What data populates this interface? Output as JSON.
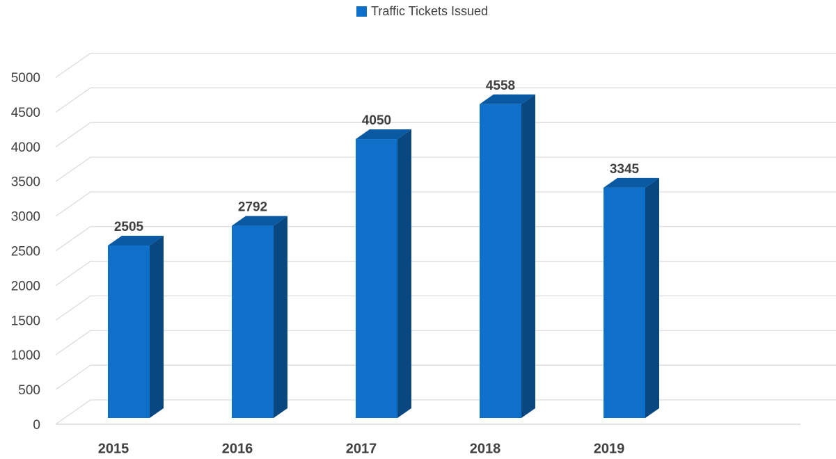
{
  "chart_data": {
    "type": "bar",
    "legend": "top",
    "categories": [
      "2015",
      "2016",
      "2017",
      "2018",
      "2019"
    ],
    "series": [
      {
        "name": "Traffic Tickets Issued",
        "color": "#0e70c8",
        "values": [
          2505,
          2792,
          4050,
          4558,
          3345
        ]
      }
    ],
    "ylim": [
      0,
      5000
    ],
    "yticks": [
      0,
      500,
      1000,
      1500,
      2000,
      2500,
      3000,
      3500,
      4000,
      4500,
      5000
    ],
    "grid": true
  }
}
